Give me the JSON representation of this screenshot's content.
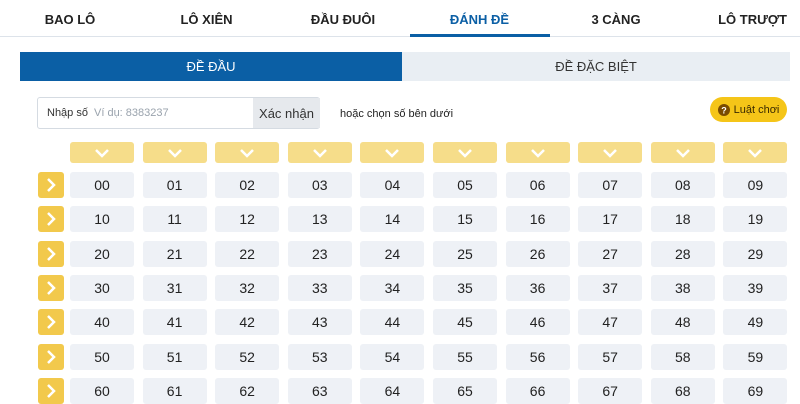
{
  "tabs": [
    "BAO LÔ",
    "LÔ XIÊN",
    "ĐẦU ĐUÔI",
    "ĐÁNH ĐỀ",
    "3 CÀNG",
    "LÔ TRƯỢT"
  ],
  "sub_tabs": [
    "ĐỀ ĐẦU",
    "ĐỀ ĐẶC BIỆT"
  ],
  "input": {
    "label": "Nhập số",
    "placeholder": "Ví dụ: 8383237",
    "button": "Xác nhận"
  },
  "hint": "hoặc chọn số bên dưới",
  "rules_button": "Luật chơi",
  "grid": {
    "rows": [
      [
        "00",
        "01",
        "02",
        "03",
        "04",
        "05",
        "06",
        "07",
        "08",
        "09"
      ],
      [
        "10",
        "11",
        "12",
        "13",
        "14",
        "15",
        "16",
        "17",
        "18",
        "19"
      ],
      [
        "20",
        "21",
        "22",
        "23",
        "24",
        "25",
        "26",
        "27",
        "28",
        "29"
      ],
      [
        "30",
        "31",
        "32",
        "33",
        "34",
        "35",
        "36",
        "37",
        "38",
        "39"
      ],
      [
        "40",
        "41",
        "42",
        "43",
        "44",
        "45",
        "46",
        "47",
        "48",
        "49"
      ],
      [
        "50",
        "51",
        "52",
        "53",
        "54",
        "55",
        "56",
        "57",
        "58",
        "59"
      ],
      [
        "60",
        "61",
        "62",
        "63",
        "64",
        "65",
        "66",
        "67",
        "68",
        "69"
      ]
    ]
  }
}
